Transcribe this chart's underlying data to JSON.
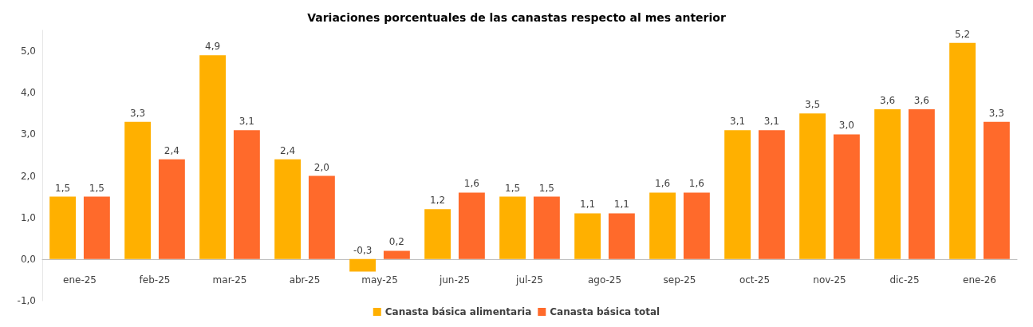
{
  "chart_data": {
    "type": "bar",
    "title": "Variaciones porcentuales de las canastas respecto al mes anterior",
    "categories": [
      "ene-25",
      "feb-25",
      "mar-25",
      "abr-25",
      "may-25",
      "jun-25",
      "jul-25",
      "ago-25",
      "sep-25",
      "oct-25",
      "nov-25",
      "dic-25",
      "ene-26"
    ],
    "series": [
      {
        "name": "Canasta básica alimentaria",
        "color": "#ffb000",
        "values": [
          1.5,
          3.3,
          4.9,
          2.4,
          -0.3,
          1.2,
          1.5,
          1.1,
          1.6,
          3.1,
          3.5,
          3.6,
          5.2
        ],
        "value_labels": [
          "1,5",
          "3,3",
          "4,9",
          "2,4",
          "-0,3",
          "1,2",
          "1,5",
          "1,1",
          "1,6",
          "3,1",
          "3,5",
          "3,6",
          "5,2"
        ]
      },
      {
        "name": "Canasta básica total",
        "color": "#ff6a2b",
        "values": [
          1.5,
          2.4,
          3.1,
          2.0,
          0.2,
          1.6,
          1.5,
          1.1,
          1.6,
          3.1,
          3.0,
          3.6,
          3.3
        ],
        "value_labels": [
          "1,5",
          "2,4",
          "3,1",
          "2,0",
          "0,2",
          "1,6",
          "1,5",
          "1,1",
          "1,6",
          "3,1",
          "3,0",
          "3,6",
          "3,3"
        ]
      }
    ],
    "ylim": [
      -1,
      5.5
    ],
    "yticks": [
      {
        "value": -1,
        "label": "-1,0"
      },
      {
        "value": 0,
        "label": "0,0"
      },
      {
        "value": 1,
        "label": "1,0"
      },
      {
        "value": 2,
        "label": "2,0"
      },
      {
        "value": 3,
        "label": "3,0"
      },
      {
        "value": 4,
        "label": "4,0"
      },
      {
        "value": 5,
        "label": "5,0"
      }
    ],
    "grid": false,
    "legend": "bottom"
  }
}
